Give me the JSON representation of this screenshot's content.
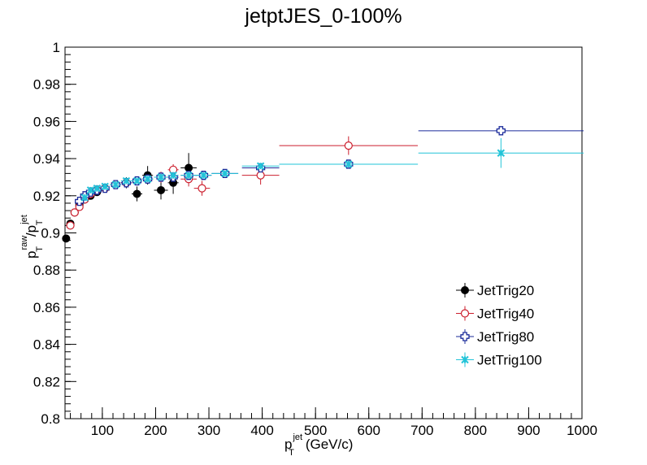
{
  "chart_data": {
    "type": "scatter",
    "title": "jetptJES_0-100%",
    "xlabel": {
      "base": "p",
      "sub": "T",
      "sup": "jet",
      "unit": "(GeV/c)"
    },
    "ylabel": {
      "num_base": "p",
      "num_sub": "T",
      "num_sup": "raw",
      "sep": "/",
      "den_base": "p",
      "den_sub": "T",
      "den_sup": "jet"
    },
    "xlim": [
      30,
      1000
    ],
    "ylim": [
      0.8,
      1.0
    ],
    "x_ticks": [
      100,
      200,
      300,
      400,
      500,
      600,
      700,
      800,
      900,
      1000
    ],
    "x_tick_labels": [
      "100",
      "200",
      "300",
      "400",
      "500",
      "600",
      "700",
      "800",
      "900",
      "1000"
    ],
    "y_ticks": [
      0.8,
      0.82,
      0.84,
      0.86,
      0.88,
      0.9,
      0.92,
      0.94,
      0.96,
      0.98,
      1.0
    ],
    "y_tick_labels": [
      "0.8",
      "0.82",
      "0.84",
      "0.86",
      "0.88",
      "0.9",
      "0.92",
      "0.94",
      "0.96",
      "0.98",
      "1"
    ],
    "grid": false,
    "legend": "bottom-right",
    "series": [
      {
        "name": "JetTrig20",
        "color": "#000000",
        "marker": "filled-circle",
        "points": [
          {
            "x": 32,
            "y": 0.897,
            "xerr": 3,
            "yerr": 0.001
          },
          {
            "x": 40,
            "y": 0.905,
            "xerr": 3,
            "yerr": 0.001
          },
          {
            "x": 48,
            "y": 0.911,
            "xerr": 4,
            "yerr": 0.001
          },
          {
            "x": 57,
            "y": 0.915,
            "xerr": 5,
            "yerr": 0.001
          },
          {
            "x": 67,
            "y": 0.918,
            "xerr": 5,
            "yerr": 0.001
          },
          {
            "x": 78,
            "y": 0.92,
            "xerr": 6,
            "yerr": 0.001
          },
          {
            "x": 90,
            "y": 0.922,
            "xerr": 6,
            "yerr": 0.001
          },
          {
            "x": 105,
            "y": 0.924,
            "xerr": 8,
            "yerr": 0.001
          },
          {
            "x": 125,
            "y": 0.926,
            "xerr": 10,
            "yerr": 0.002
          },
          {
            "x": 145,
            "y": 0.927,
            "xerr": 10,
            "yerr": 0.003
          },
          {
            "x": 165,
            "y": 0.921,
            "xerr": 10,
            "yerr": 0.004
          },
          {
            "x": 185,
            "y": 0.931,
            "xerr": 10,
            "yerr": 0.005
          },
          {
            "x": 210,
            "y": 0.923,
            "xerr": 13,
            "yerr": 0.005
          },
          {
            "x": 233,
            "y": 0.927,
            "xerr": 10,
            "yerr": 0.006
          },
          {
            "x": 262,
            "y": 0.935,
            "xerr": 15,
            "yerr": 0.008
          }
        ]
      },
      {
        "name": "JetTrig40",
        "color": "#cc1f2e",
        "marker": "open-circle",
        "points": [
          {
            "x": 40,
            "y": 0.904,
            "xerr": 3,
            "yerr": 0.001
          },
          {
            "x": 48,
            "y": 0.911,
            "xerr": 4,
            "yerr": 0.001
          },
          {
            "x": 57,
            "y": 0.914,
            "xerr": 5,
            "yerr": 0.001
          },
          {
            "x": 67,
            "y": 0.918,
            "xerr": 5,
            "yerr": 0.001
          },
          {
            "x": 78,
            "y": 0.921,
            "xerr": 6,
            "yerr": 0.001
          },
          {
            "x": 90,
            "y": 0.923,
            "xerr": 6,
            "yerr": 0.001
          },
          {
            "x": 105,
            "y": 0.924,
            "xerr": 8,
            "yerr": 0.001
          },
          {
            "x": 125,
            "y": 0.926,
            "xerr": 10,
            "yerr": 0.001
          },
          {
            "x": 145,
            "y": 0.927,
            "xerr": 10,
            "yerr": 0.001
          },
          {
            "x": 165,
            "y": 0.928,
            "xerr": 10,
            "yerr": 0.002
          },
          {
            "x": 185,
            "y": 0.929,
            "xerr": 10,
            "yerr": 0.002
          },
          {
            "x": 210,
            "y": 0.93,
            "xerr": 13,
            "yerr": 0.003
          },
          {
            "x": 233,
            "y": 0.934,
            "xerr": 10,
            "yerr": 0.003
          },
          {
            "x": 262,
            "y": 0.929,
            "xerr": 15,
            "yerr": 0.004
          },
          {
            "x": 287,
            "y": 0.924,
            "xerr": 15,
            "yerr": 0.004
          },
          {
            "x": 397,
            "y": 0.931,
            "xerr": 35,
            "yerr": 0.005
          },
          {
            "x": 562,
            "y": 0.947,
            "xerr": 130,
            "yerr": 0.005
          }
        ]
      },
      {
        "name": "JetTrig80",
        "color": "#1a2a9a",
        "marker": "open-cross",
        "points": [
          {
            "x": 57,
            "y": 0.917,
            "xerr": 5,
            "yerr": 0.001
          },
          {
            "x": 67,
            "y": 0.92,
            "xerr": 5,
            "yerr": 0.001
          },
          {
            "x": 78,
            "y": 0.922,
            "xerr": 6,
            "yerr": 0.001
          },
          {
            "x": 90,
            "y": 0.923,
            "xerr": 6,
            "yerr": 0.001
          },
          {
            "x": 105,
            "y": 0.924,
            "xerr": 8,
            "yerr": 0.001
          },
          {
            "x": 125,
            "y": 0.926,
            "xerr": 10,
            "yerr": 0.001
          },
          {
            "x": 145,
            "y": 0.927,
            "xerr": 10,
            "yerr": 0.001
          },
          {
            "x": 165,
            "y": 0.928,
            "xerr": 10,
            "yerr": 0.001
          },
          {
            "x": 185,
            "y": 0.929,
            "xerr": 10,
            "yerr": 0.001
          },
          {
            "x": 210,
            "y": 0.93,
            "xerr": 13,
            "yerr": 0.001
          },
          {
            "x": 233,
            "y": 0.93,
            "xerr": 10,
            "yerr": 0.001
          },
          {
            "x": 262,
            "y": 0.931,
            "xerr": 15,
            "yerr": 0.001
          },
          {
            "x": 290,
            "y": 0.931,
            "xerr": 15,
            "yerr": 0.001
          },
          {
            "x": 330,
            "y": 0.932,
            "xerr": 25,
            "yerr": 0.001
          },
          {
            "x": 397,
            "y": 0.935,
            "xerr": 35,
            "yerr": 0.001
          },
          {
            "x": 562,
            "y": 0.937,
            "xerr": 130,
            "yerr": 0.001
          },
          {
            "x": 848,
            "y": 0.955,
            "xerr": 155,
            "yerr": 0.002
          }
        ]
      },
      {
        "name": "JetTrig100",
        "color": "#22c4d8",
        "marker": "star",
        "points": [
          {
            "x": 67,
            "y": 0.919,
            "xerr": 5,
            "yerr": 0.001
          },
          {
            "x": 78,
            "y": 0.923,
            "xerr": 6,
            "yerr": 0.001
          },
          {
            "x": 90,
            "y": 0.924,
            "xerr": 6,
            "yerr": 0.001
          },
          {
            "x": 105,
            "y": 0.925,
            "xerr": 8,
            "yerr": 0.001
          },
          {
            "x": 125,
            "y": 0.926,
            "xerr": 10,
            "yerr": 0.001
          },
          {
            "x": 145,
            "y": 0.928,
            "xerr": 10,
            "yerr": 0.001
          },
          {
            "x": 165,
            "y": 0.928,
            "xerr": 10,
            "yerr": 0.001
          },
          {
            "x": 185,
            "y": 0.929,
            "xerr": 10,
            "yerr": 0.001
          },
          {
            "x": 210,
            "y": 0.93,
            "xerr": 13,
            "yerr": 0.001
          },
          {
            "x": 233,
            "y": 0.931,
            "xerr": 10,
            "yerr": 0.001
          },
          {
            "x": 262,
            "y": 0.931,
            "xerr": 15,
            "yerr": 0.001
          },
          {
            "x": 290,
            "y": 0.931,
            "xerr": 15,
            "yerr": 0.001
          },
          {
            "x": 330,
            "y": 0.932,
            "xerr": 25,
            "yerr": 0.001
          },
          {
            "x": 397,
            "y": 0.936,
            "xerr": 35,
            "yerr": 0.001
          },
          {
            "x": 562,
            "y": 0.937,
            "xerr": 130,
            "yerr": 0.002
          },
          {
            "x": 848,
            "y": 0.943,
            "xerr": 155,
            "yerr": 0.008
          }
        ]
      }
    ]
  }
}
